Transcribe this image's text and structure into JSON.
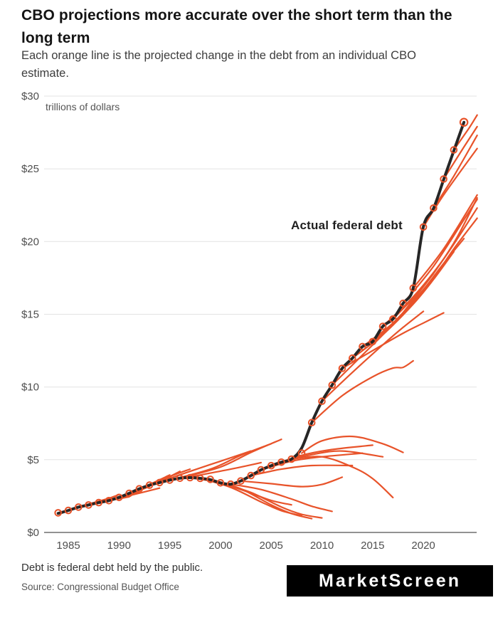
{
  "header": {
    "title": "CBO projections more accurate over the short term than the long term",
    "subtitle": "Each orange line is the projected change in the debt from an individual CBO estimate."
  },
  "chart_data": {
    "type": "line",
    "title": "CBO projections more accurate over the short term than the long term",
    "unit_label": "trillions of dollars",
    "annotation": "Actual federal debt",
    "xlabel": "",
    "ylabel": "trillions of dollars",
    "x_range": [
      1983.8,
      2025.3
    ],
    "ylim": [
      0,
      30
    ],
    "grid": "horizontal",
    "y_ticks": [
      {
        "value": 0,
        "label": "$0"
      },
      {
        "value": 5,
        "label": "$5"
      },
      {
        "value": 10,
        "label": "$10"
      },
      {
        "value": 15,
        "label": "$15"
      },
      {
        "value": 20,
        "label": "$20"
      },
      {
        "value": 25,
        "label": "$25"
      },
      {
        "value": 30,
        "label": "$30"
      }
    ],
    "x_ticks": [
      {
        "value": 1985,
        "label": "1985"
      },
      {
        "value": 1990,
        "label": "1990"
      },
      {
        "value": 1995,
        "label": "1995"
      },
      {
        "value": 2000,
        "label": "2000"
      },
      {
        "value": 2005,
        "label": "2005"
      },
      {
        "value": 2010,
        "label": "2010"
      },
      {
        "value": 2015,
        "label": "2015"
      },
      {
        "value": 2020,
        "label": "2020"
      }
    ],
    "actual": {
      "name": "Actual federal debt",
      "points": [
        [
          1984,
          1.31
        ],
        [
          1985,
          1.51
        ],
        [
          1986,
          1.74
        ],
        [
          1987,
          1.89
        ],
        [
          1988,
          2.05
        ],
        [
          1989,
          2.19
        ],
        [
          1990,
          2.41
        ],
        [
          1991,
          2.69
        ],
        [
          1992,
          3.0
        ],
        [
          1993,
          3.25
        ],
        [
          1994,
          3.43
        ],
        [
          1995,
          3.6
        ],
        [
          1996,
          3.73
        ],
        [
          1997,
          3.77
        ],
        [
          1998,
          3.72
        ],
        [
          1999,
          3.63
        ],
        [
          2000,
          3.41
        ],
        [
          2001,
          3.32
        ],
        [
          2002,
          3.54
        ],
        [
          2003,
          3.91
        ],
        [
          2004,
          4.3
        ],
        [
          2005,
          4.59
        ],
        [
          2006,
          4.83
        ],
        [
          2007,
          5.04
        ],
        [
          2008,
          5.8
        ],
        [
          2009,
          7.55
        ],
        [
          2010,
          9.02
        ],
        [
          2011,
          10.13
        ],
        [
          2012,
          11.28
        ],
        [
          2013,
          11.98
        ],
        [
          2014,
          12.78
        ],
        [
          2015,
          13.12
        ],
        [
          2016,
          14.17
        ],
        [
          2017,
          14.67
        ],
        [
          2018,
          15.75
        ],
        [
          2019,
          16.8
        ],
        [
          2020,
          21.02
        ],
        [
          2021,
          22.28
        ],
        [
          2022,
          24.26
        ],
        [
          2023,
          26.24
        ],
        [
          2024,
          28.2
        ]
      ]
    },
    "projections": [
      {
        "start_year": 1984,
        "points": [
          [
            1984,
            1.35
          ],
          [
            1987,
            1.95
          ],
          [
            1989,
            2.35
          ]
        ]
      },
      {
        "start_year": 1985,
        "points": [
          [
            1985,
            1.51
          ],
          [
            1988,
            2.1
          ],
          [
            1990,
            2.6
          ]
        ]
      },
      {
        "start_year": 1986,
        "points": [
          [
            1986,
            1.74
          ],
          [
            1988,
            2.05
          ],
          [
            1991,
            2.45
          ]
        ]
      },
      {
        "start_year": 1987,
        "points": [
          [
            1987,
            1.89
          ],
          [
            1990,
            2.35
          ],
          [
            1992,
            2.8
          ]
        ]
      },
      {
        "start_year": 1988,
        "points": [
          [
            1988,
            2.05
          ],
          [
            1991,
            2.65
          ],
          [
            1993,
            3.15
          ]
        ]
      },
      {
        "start_year": 1989,
        "points": [
          [
            1989,
            2.19
          ],
          [
            1992,
            2.7
          ],
          [
            1994,
            3.05
          ]
        ]
      },
      {
        "start_year": 1990,
        "points": [
          [
            1990,
            2.41
          ],
          [
            1993,
            3.3
          ],
          [
            1995,
            3.95
          ]
        ]
      },
      {
        "start_year": 1991,
        "points": [
          [
            1991,
            2.69
          ],
          [
            1994,
            3.5
          ],
          [
            1996,
            4.2
          ]
        ]
      },
      {
        "start_year": 1992,
        "points": [
          [
            1992,
            3.0
          ],
          [
            1995,
            3.85
          ],
          [
            1997,
            4.35
          ]
        ]
      },
      {
        "start_year": 1993,
        "points": [
          [
            1993,
            3.25
          ],
          [
            1997,
            4.2
          ],
          [
            2000,
            4.9
          ],
          [
            2003,
            5.6
          ]
        ]
      },
      {
        "start_year": 1994,
        "points": [
          [
            1994,
            3.43
          ],
          [
            1998,
            3.95
          ],
          [
            2001,
            4.35
          ],
          [
            2004,
            4.8
          ]
        ]
      },
      {
        "start_year": 1995,
        "points": [
          [
            1995,
            3.6
          ],
          [
            1999,
            4.35
          ],
          [
            2002,
            5.3
          ],
          [
            2005,
            6.1
          ]
        ]
      },
      {
        "start_year": 1996,
        "points": [
          [
            1996,
            3.73
          ],
          [
            2000,
            4.5
          ],
          [
            2003,
            5.5
          ],
          [
            2006,
            6.4
          ]
        ]
      },
      {
        "start_year": 1997,
        "points": [
          [
            1997,
            3.77
          ],
          [
            2000,
            3.4
          ],
          [
            2003,
            2.7
          ],
          [
            2005,
            2.2
          ],
          [
            2007,
            1.9
          ]
        ]
      },
      {
        "start_year": 1998,
        "points": [
          [
            1998,
            3.72
          ],
          [
            2001,
            3.1
          ],
          [
            2004,
            2.1
          ],
          [
            2006,
            1.5
          ],
          [
            2008,
            1.15
          ]
        ]
      },
      {
        "start_year": 1999,
        "points": [
          [
            1999,
            3.65
          ],
          [
            2002,
            3.0
          ],
          [
            2005,
            1.9
          ],
          [
            2007,
            1.3
          ],
          [
            2009,
            0.95
          ]
        ]
      },
      {
        "start_year": 2000,
        "points": [
          [
            2000,
            3.41
          ],
          [
            2003,
            2.75
          ],
          [
            2006,
            1.75
          ],
          [
            2008,
            1.25
          ],
          [
            2010,
            1.0
          ]
        ]
      },
      {
        "start_year": 2001,
        "points": [
          [
            2001,
            3.32
          ],
          [
            2004,
            2.95
          ],
          [
            2007,
            2.3
          ],
          [
            2009,
            1.8
          ],
          [
            2011,
            1.45
          ]
        ]
      },
      {
        "start_year": 2002,
        "points": [
          [
            2002,
            3.54
          ],
          [
            2005,
            3.35
          ],
          [
            2008,
            3.15
          ],
          [
            2010,
            3.3
          ],
          [
            2012,
            3.8
          ]
        ]
      },
      {
        "start_year": 2003,
        "points": [
          [
            2003,
            3.91
          ],
          [
            2006,
            4.35
          ],
          [
            2009,
            4.6
          ],
          [
            2013,
            4.6
          ]
        ]
      },
      {
        "start_year": 2004,
        "points": [
          [
            2004,
            4.3
          ],
          [
            2007,
            4.9
          ],
          [
            2010,
            5.2
          ],
          [
            2014,
            5.45
          ]
        ]
      },
      {
        "start_year": 2005,
        "points": [
          [
            2005,
            4.59
          ],
          [
            2008,
            5.3
          ],
          [
            2011,
            5.7
          ],
          [
            2015,
            6.0
          ]
        ]
      },
      {
        "start_year": 2006,
        "points": [
          [
            2006,
            4.83
          ],
          [
            2009,
            5.35
          ],
          [
            2012,
            5.6
          ],
          [
            2016,
            5.2
          ]
        ]
      },
      {
        "start_year": 2007,
        "points": [
          [
            2007,
            5.04
          ],
          [
            2010,
            5.2
          ],
          [
            2013,
            4.5
          ],
          [
            2015,
            3.7
          ],
          [
            2017,
            2.4
          ]
        ]
      },
      {
        "start_year": 2008,
        "points": [
          [
            2008,
            5.45
          ],
          [
            2010,
            6.3
          ],
          [
            2013,
            6.6
          ],
          [
            2016,
            6.1
          ],
          [
            2018,
            5.5
          ]
        ]
      },
      {
        "start_year": 2009,
        "points": [
          [
            2009,
            7.55
          ],
          [
            2012,
            9.4
          ],
          [
            2015,
            10.7
          ],
          [
            2017,
            11.3
          ],
          [
            2018,
            11.35
          ],
          [
            2019,
            11.8
          ]
        ]
      },
      {
        "start_year": 2010,
        "points": [
          [
            2010,
            9.02
          ],
          [
            2013,
            11.0
          ],
          [
            2016,
            12.9
          ],
          [
            2018,
            14.1
          ],
          [
            2020,
            15.2
          ]
        ]
      },
      {
        "start_year": 2011,
        "points": [
          [
            2011,
            10.13
          ],
          [
            2014,
            12.2
          ],
          [
            2017,
            14.3
          ],
          [
            2019,
            16.0
          ],
          [
            2021,
            17.8
          ]
        ]
      },
      {
        "start_year": 2012,
        "points": [
          [
            2012,
            11.28
          ],
          [
            2015,
            12.5
          ],
          [
            2018,
            13.7
          ],
          [
            2020,
            14.4
          ],
          [
            2022,
            15.1
          ]
        ]
      },
      {
        "start_year": 2013,
        "points": [
          [
            2013,
            11.98
          ],
          [
            2016,
            13.6
          ],
          [
            2019,
            15.7
          ],
          [
            2021,
            17.4
          ],
          [
            2023,
            19.3
          ]
        ]
      },
      {
        "start_year": 2014,
        "points": [
          [
            2014,
            12.78
          ],
          [
            2017,
            14.4
          ],
          [
            2020,
            16.7
          ],
          [
            2022,
            18.5
          ],
          [
            2024,
            20.2
          ]
        ]
      },
      {
        "start_year": 2015,
        "points": [
          [
            2015,
            13.12
          ],
          [
            2018,
            15.0
          ],
          [
            2021,
            17.5
          ],
          [
            2023,
            19.5
          ],
          [
            2025.3,
            21.6
          ]
        ]
      },
      {
        "start_year": 2016,
        "points": [
          [
            2016,
            14.17
          ],
          [
            2019,
            16.2
          ],
          [
            2022,
            18.8
          ],
          [
            2025.3,
            22.3
          ]
        ]
      },
      {
        "start_year": 2017,
        "points": [
          [
            2017,
            14.67
          ],
          [
            2020,
            16.9
          ],
          [
            2023,
            19.9
          ],
          [
            2025.3,
            23.0
          ]
        ]
      },
      {
        "start_year": 2018,
        "points": [
          [
            2018,
            15.75
          ],
          [
            2021,
            18.3
          ],
          [
            2024,
            21.5
          ],
          [
            2025.3,
            22.9
          ]
        ]
      },
      {
        "start_year": 2019,
        "points": [
          [
            2019,
            16.8
          ],
          [
            2022,
            19.5
          ],
          [
            2025.3,
            23.2
          ]
        ]
      },
      {
        "start_year": 2020,
        "points": [
          [
            2020,
            21.0
          ],
          [
            2022,
            23.2
          ],
          [
            2025.3,
            26.4
          ]
        ]
      },
      {
        "start_year": 2021,
        "points": [
          [
            2021,
            22.3
          ],
          [
            2023,
            24.5
          ],
          [
            2025.3,
            27.3
          ]
        ]
      },
      {
        "start_year": 2022,
        "points": [
          [
            2022,
            24.3
          ],
          [
            2024,
            26.5
          ],
          [
            2025.3,
            27.9
          ]
        ]
      },
      {
        "start_year": 2023,
        "points": [
          [
            2023,
            26.3
          ],
          [
            2024.5,
            27.8
          ],
          [
            2025.3,
            28.7
          ]
        ]
      }
    ],
    "colors": {
      "actual": "#262626",
      "projection": "#E8532A",
      "grid": "#E3E3E3",
      "axis": "#6F6F6F",
      "tick_text": "#4F4F4F"
    },
    "legend_position": "none"
  },
  "footer": {
    "note": "Debt is federal debt held by the public.",
    "source": "Source: Congressional Budget Office"
  },
  "logo": {
    "text": "MarketScreen"
  }
}
